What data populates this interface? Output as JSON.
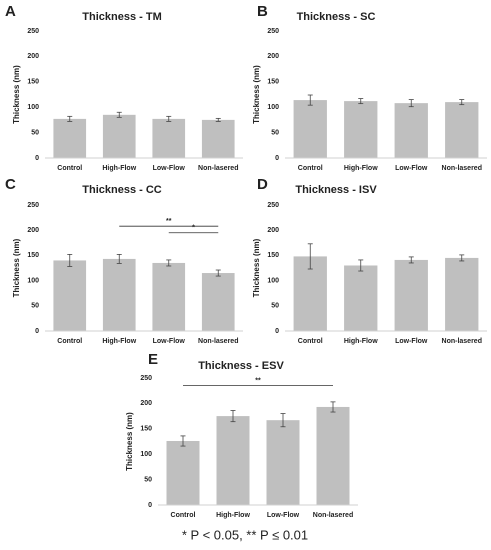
{
  "chart_data": [
    {
      "type": "bar",
      "label": "A",
      "title": "Thickness - TM",
      "ylabel": "Thickness (nm)",
      "categories": [
        "Control",
        "High-Flow",
        "Low-Flow",
        "Non-lasered"
      ],
      "values": [
        77,
        85,
        77,
        75
      ],
      "errors": [
        5,
        5,
        5,
        3
      ],
      "color": "#bfbfbf",
      "ylim": [
        0,
        250
      ],
      "yticks": [
        0,
        50,
        100,
        150,
        200,
        250
      ],
      "annotations": []
    },
    {
      "type": "bar",
      "label": "B",
      "title": "Thickness - SC",
      "ylabel": "Thickness (nm)",
      "categories": [
        "Control",
        "High-Flow",
        "Low-Flow",
        "Non-lasered"
      ],
      "values": [
        114,
        112,
        108,
        110
      ],
      "errors": [
        10,
        5,
        7,
        5
      ],
      "color": "#bfbfbf",
      "ylim": [
        0,
        250
      ],
      "yticks": [
        0,
        50,
        100,
        150,
        200,
        250
      ],
      "annotations": []
    },
    {
      "type": "bar",
      "label": "C",
      "title": "Thickness - CC",
      "ylabel": "Thickness (nm)",
      "categories": [
        "Control",
        "High-Flow",
        "Low-Flow",
        "Non-lasered"
      ],
      "values": [
        140,
        143,
        135,
        115
      ],
      "errors": [
        12,
        9,
        6,
        6
      ],
      "color": "#bfbfbf",
      "ylim": [
        0,
        250
      ],
      "yticks": [
        0,
        50,
        100,
        150,
        200,
        250
      ],
      "annotations": [
        {
          "text": "**",
          "from": "High-Flow",
          "to": "Non-lasered",
          "y": 208
        },
        {
          "text": "*",
          "from": "Low-Flow",
          "to": "Non-lasered",
          "y": 195
        }
      ]
    },
    {
      "type": "bar",
      "label": "D",
      "title": "Thickness - ISV",
      "ylabel": "Thickness (nm)",
      "categories": [
        "Control",
        "High-Flow",
        "Low-Flow",
        "Non-lasered"
      ],
      "values": [
        148,
        130,
        141,
        145
      ],
      "errors": [
        25,
        11,
        6,
        6
      ],
      "color": "#bfbfbf",
      "ylim": [
        0,
        250
      ],
      "yticks": [
        0,
        50,
        100,
        150,
        200,
        250
      ],
      "annotations": []
    },
    {
      "type": "bar",
      "label": "E",
      "title": "Thickness - ESV",
      "ylabel": "Thickness (nm)",
      "categories": [
        "Control",
        "High-Flow",
        "Low-Flow",
        "Non-lasered"
      ],
      "values": [
        126,
        175,
        167,
        193
      ],
      "errors": [
        10,
        11,
        13,
        10
      ],
      "color": "#bfbfbf",
      "ylim": [
        0,
        250
      ],
      "yticks": [
        0,
        50,
        100,
        150,
        200,
        250
      ],
      "annotations": [
        {
          "text": "**",
          "from": "Control",
          "to": "Non-lasered",
          "y": 235
        }
      ]
    }
  ],
  "footnote": "* P < 0.05, ** P ≤ 0.01"
}
